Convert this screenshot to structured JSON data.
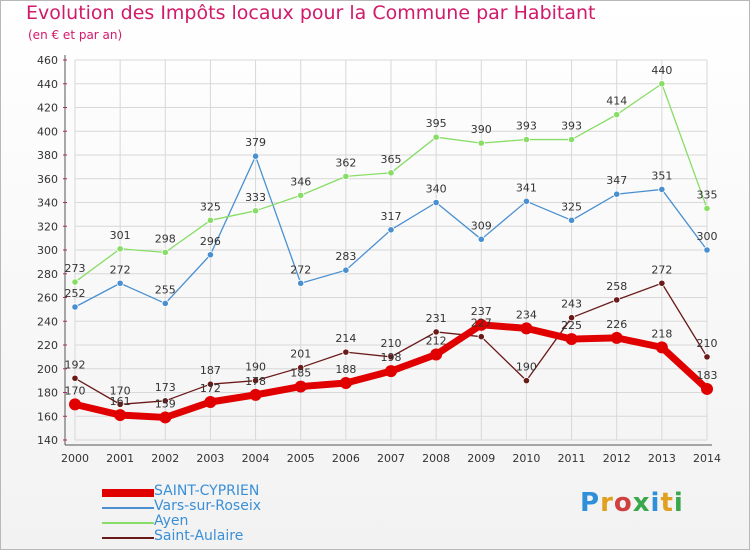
{
  "header": {
    "title": "Evolution des Impôts locaux pour la Commune par Habitant",
    "subtitle": "(en € et par an)"
  },
  "logo": {
    "text": "Proxiti"
  },
  "colors": {
    "title": "#d11a6a",
    "legend_text": "#3a8fd6",
    "grid": "#d8d8d8"
  },
  "chart_data": {
    "type": "line",
    "x": [
      2000,
      2001,
      2002,
      2003,
      2004,
      2005,
      2006,
      2007,
      2008,
      2009,
      2010,
      2011,
      2012,
      2013,
      2014
    ],
    "ylim": [
      140,
      460
    ],
    "yticks": [
      140,
      160,
      180,
      200,
      220,
      240,
      260,
      280,
      300,
      320,
      340,
      360,
      380,
      400,
      420,
      440,
      460
    ],
    "grid": true,
    "legend_position": "bottom-left",
    "series": [
      {
        "name": "SAINT-CYPRIEN",
        "color": "#e00000",
        "values": [
          170,
          161,
          159,
          172,
          178,
          185,
          188,
          198,
          212,
          237,
          234,
          225,
          226,
          218,
          183
        ]
      },
      {
        "name": "Vars-sur-Roseix",
        "color": "#4a90d0",
        "values": [
          252,
          272,
          255,
          296,
          379,
          272,
          283,
          317,
          340,
          309,
          341,
          325,
          347,
          351,
          300
        ]
      },
      {
        "name": "Ayen",
        "color": "#88dd66",
        "values": [
          273,
          301,
          298,
          325,
          333,
          346,
          362,
          365,
          395,
          390,
          393,
          393,
          414,
          440,
          335
        ]
      },
      {
        "name": "Saint-Aulaire",
        "color": "#6b1a1a",
        "values": [
          192,
          170,
          173,
          187,
          190,
          201,
          214,
          210,
          231,
          227,
          190,
          243,
          258,
          272,
          210
        ]
      }
    ]
  }
}
